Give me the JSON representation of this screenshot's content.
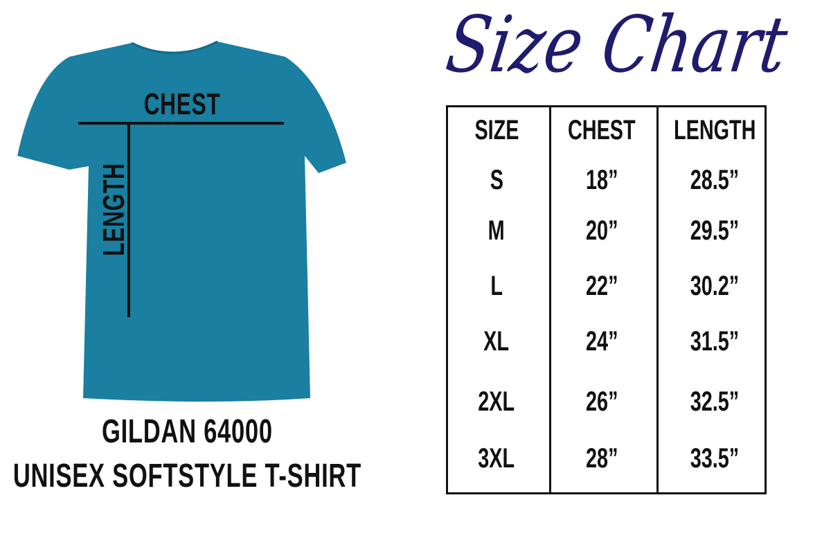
{
  "title": "Size Chart",
  "title_color": "#1f1c6e",
  "shirt": {
    "color": "#1a7fa0",
    "chest_label": "CHEST",
    "length_label": "LENGTH"
  },
  "caption": {
    "line1": "GILDAN 64000",
    "line2": "UNISEX SOFTSTYLE T-SHIRT"
  },
  "table": {
    "headers": [
      "SIZE",
      "CHEST",
      "LENGTH"
    ],
    "rows": [
      [
        "S",
        "18”",
        "28.5”"
      ],
      [
        "M",
        "20”",
        "29.5”"
      ],
      [
        "L",
        "22”",
        "30.2”"
      ],
      [
        "XL",
        "24”",
        "31.5”"
      ],
      [
        "2XL",
        "26”",
        "32.5”"
      ],
      [
        "3XL",
        "28”",
        "33.5”"
      ]
    ]
  }
}
